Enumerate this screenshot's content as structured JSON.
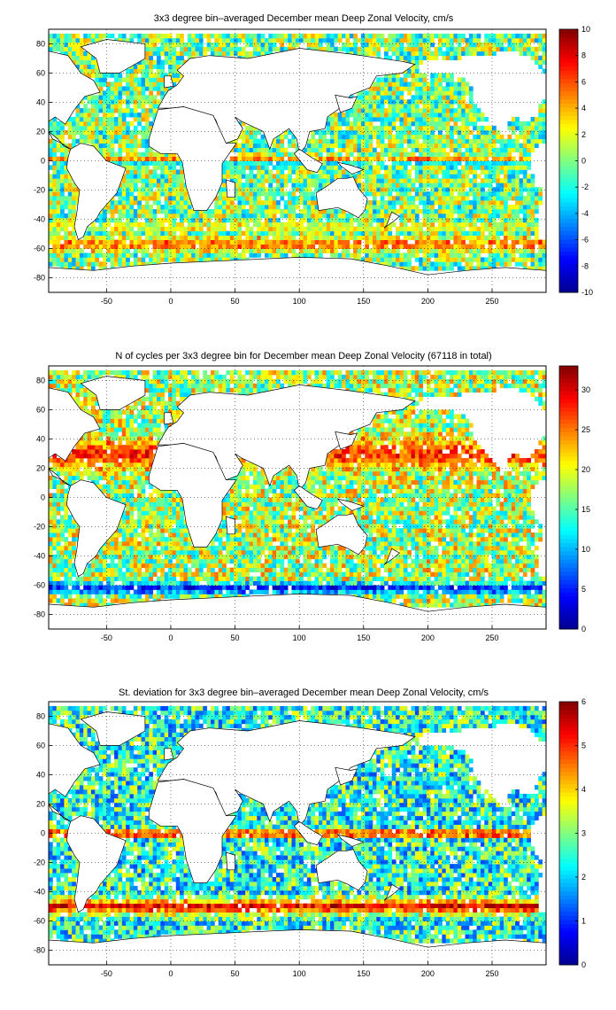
{
  "palette": [
    "#00008f",
    "#0000ff",
    "#0080ff",
    "#00ffff",
    "#80ff80",
    "#ffff00",
    "#ff8000",
    "#ff0000",
    "#800000"
  ],
  "land_color": "#ffffff",
  "chart_data": [
    {
      "type": "heatmap",
      "title": "3x3 degree bin–averaged December mean Deep Zonal Velocity, cm/s",
      "xlabel": "",
      "ylabel": "",
      "xlim": [
        -95,
        292
      ],
      "ylim": [
        -90,
        90
      ],
      "xticks": [
        -50,
        0,
        50,
        100,
        150,
        200,
        250
      ],
      "yticks": [
        80,
        60,
        40,
        20,
        0,
        -20,
        -40,
        -60,
        -80
      ],
      "colorbar": {
        "min": -10,
        "max": 10,
        "ticks": [
          10,
          8,
          6,
          4,
          2,
          0,
          -2,
          -4,
          -6,
          -8,
          -10
        ]
      },
      "grid": true,
      "bin_deg": 3,
      "values_description": "zonal velocity per 3x3 degree bin",
      "features": {
        "background": 0.0,
        "bands": [
          {
            "lat": -57,
            "width": 7,
            "value": 6.0
          },
          {
            "lat": 2,
            "width": 3,
            "value": 5.0
          },
          {
            "lat": -2,
            "width": 2,
            "value": -3.0
          },
          {
            "lat": -45,
            "width": 4,
            "value": 3.0
          }
        ]
      }
    },
    {
      "type": "heatmap",
      "title": "N of cycles per 3x3 degree bin for December mean Deep Zonal Velocity (67118 in total)",
      "xlabel": "",
      "ylabel": "",
      "xlim": [
        -95,
        292
      ],
      "ylim": [
        -90,
        90
      ],
      "xticks": [
        -50,
        0,
        50,
        100,
        150,
        200,
        250
      ],
      "yticks": [
        80,
        60,
        40,
        20,
        0,
        -20,
        -40,
        -60,
        -80
      ],
      "colorbar": {
        "min": 0,
        "max": 33,
        "ticks": [
          30,
          25,
          20,
          15,
          10,
          5,
          0
        ]
      },
      "grid": true,
      "bin_deg": 3,
      "total_cycles": 67118,
      "features": {
        "background": 18,
        "bands": [
          {
            "lat": -62,
            "width": 6,
            "value": 4
          },
          {
            "lat": 30,
            "width": 15,
            "value": 28
          }
        ]
      }
    },
    {
      "type": "heatmap",
      "title": "St. deviation for 3x3 degree bin–averaged December mean Deep Zonal Velocity, cm/s",
      "xlabel": "",
      "ylabel": "",
      "xlim": [
        -95,
        292
      ],
      "ylim": [
        -90,
        90
      ],
      "xticks": [
        -50,
        0,
        50,
        100,
        150,
        200,
        250
      ],
      "yticks": [
        80,
        60,
        40,
        20,
        0,
        -20,
        -40,
        -60,
        -80
      ],
      "colorbar": {
        "min": 0,
        "max": 6,
        "ticks": [
          6,
          5,
          4,
          3,
          2,
          1,
          0
        ]
      },
      "grid": true,
      "bin_deg": 3,
      "features": {
        "background": 2.5,
        "bands": [
          {
            "lat": 0,
            "width": 4,
            "value": 5.8
          },
          {
            "lat": -50,
            "width": 8,
            "value": 5.5
          }
        ]
      }
    }
  ]
}
